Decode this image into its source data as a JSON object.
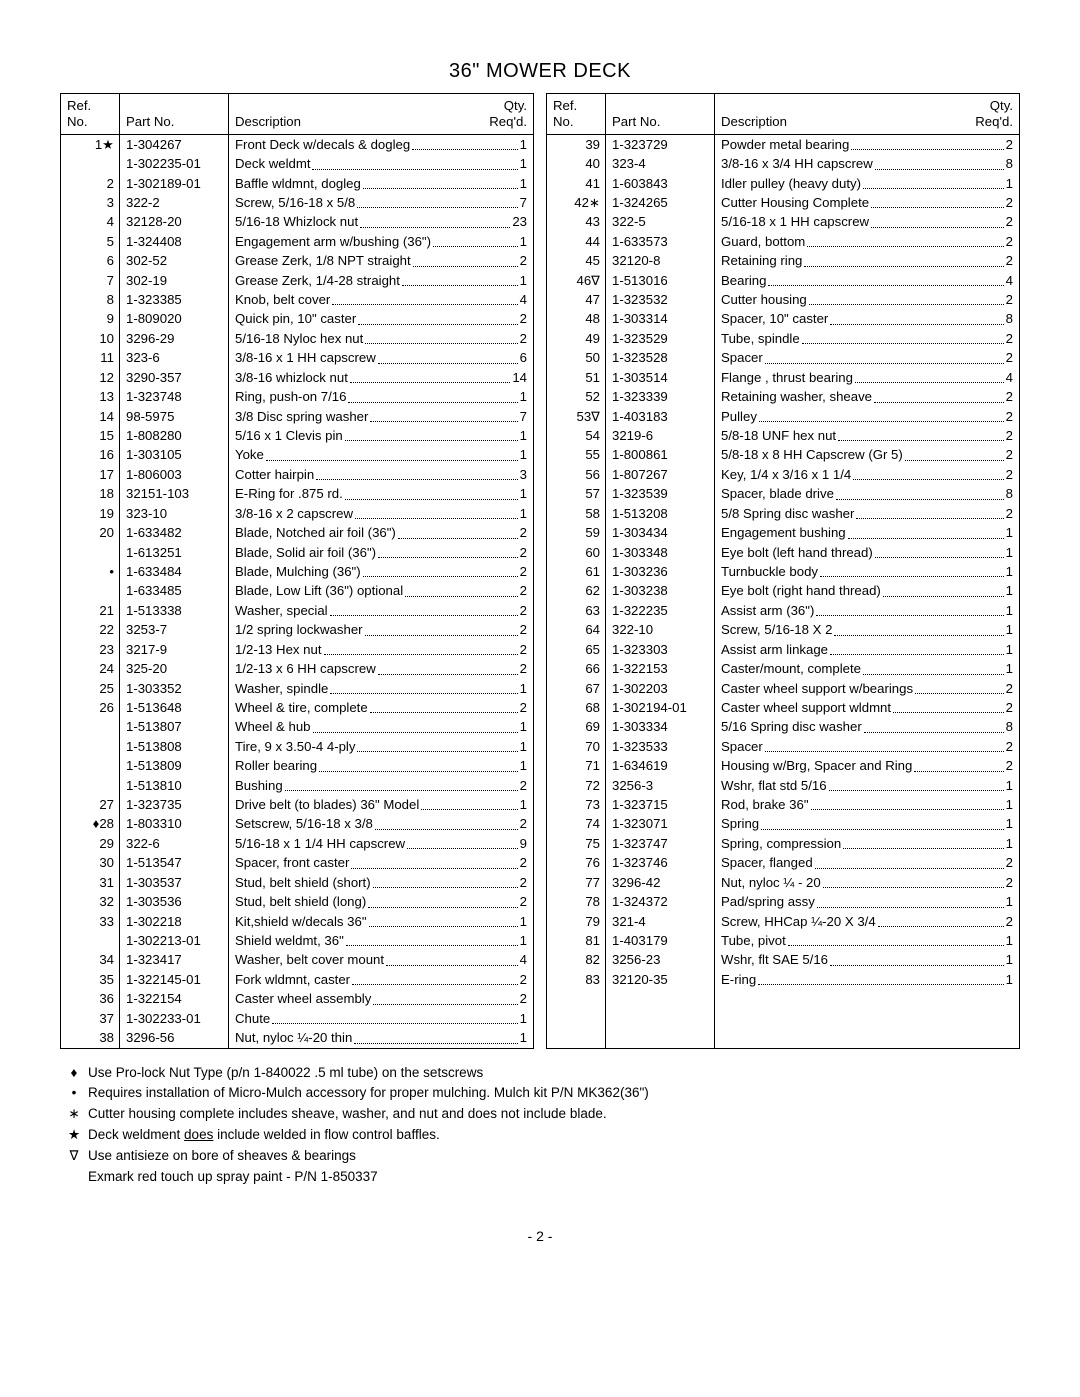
{
  "title": "36\" MOWER DECK",
  "headers": {
    "ref1": "Ref.",
    "ref2": "No.",
    "part": "Part No.",
    "desc": "Description",
    "qty1": "Qty.",
    "qty2": "Req'd."
  },
  "left": [
    {
      "ref": "1★",
      "part": "1-304267",
      "desc": "Front Deck w/decals & dogleg",
      "qty": "1"
    },
    {
      "ref": "",
      "part": "1-302235-01",
      "desc": "Deck weldmt",
      "qty": "1"
    },
    {
      "ref": "2",
      "part": "1-302189-01",
      "desc": "Baffle wldmnt, dogleg",
      "qty": "1"
    },
    {
      "ref": "3",
      "part": "322-2",
      "desc": "Screw, 5/16-18 x 5/8",
      "qty": "7"
    },
    {
      "ref": "4",
      "part": "32128-20",
      "desc": "5/16-18 Whizlock nut",
      "qty": "23"
    },
    {
      "ref": "5",
      "part": "1-324408",
      "desc": "Engagement arm w/bushing (36\")",
      "qty": "1"
    },
    {
      "ref": "6",
      "part": "302-52",
      "desc": "Grease Zerk, 1/8 NPT straight",
      "qty": "2"
    },
    {
      "ref": "7",
      "part": "302-19",
      "desc": "Grease Zerk, 1/4-28 straight",
      "qty": "1"
    },
    {
      "ref": "8",
      "part": "1-323385",
      "desc": "Knob, belt cover",
      "qty": "4"
    },
    {
      "ref": "9",
      "part": "1-809020",
      "desc": "Quick pin, 10\" caster",
      "qty": "2"
    },
    {
      "ref": "10",
      "part": "3296-29",
      "desc": "5/16-18 Nyloc hex nut",
      "qty": "2"
    },
    {
      "ref": "11",
      "part": "323-6",
      "desc": "3/8-16 x 1 HH capscrew",
      "qty": "6"
    },
    {
      "ref": "12",
      "part": "3290-357",
      "desc": "3/8-16 whizlock nut",
      "qty": "14"
    },
    {
      "ref": "13",
      "part": "1-323748",
      "desc": "Ring, push-on 7/16",
      "qty": "1"
    },
    {
      "ref": "14",
      "part": "98-5975",
      "desc": "3/8 Disc spring washer",
      "qty": "7"
    },
    {
      "ref": "15",
      "part": "1-808280",
      "desc": "5/16 x 1 Clevis pin",
      "qty": "1"
    },
    {
      "ref": "16",
      "part": "1-303105",
      "desc": "Yoke",
      "qty": "1"
    },
    {
      "ref": "17",
      "part": "1-806003",
      "desc": "Cotter hairpin",
      "qty": "3"
    },
    {
      "ref": "18",
      "part": "32151-103",
      "desc": "E-Ring for .875 rd.",
      "qty": "1"
    },
    {
      "ref": "19",
      "part": "323-10",
      "desc": "3/8-16 x 2 capscrew",
      "qty": "1"
    },
    {
      "ref": "20",
      "part": "1-633482",
      "desc": "Blade, Notched air foil (36\")",
      "qty": "2"
    },
    {
      "ref": "",
      "part": "1-613251",
      "desc": "Blade, Solid air foil (36\")",
      "qty": "2"
    },
    {
      "ref": "•",
      "part": "1-633484",
      "desc": "Blade, Mulching (36\")",
      "qty": "2"
    },
    {
      "ref": "",
      "part": "1-633485",
      "desc": "Blade, Low Lift (36\") optional",
      "qty": "2"
    },
    {
      "ref": "21",
      "part": "1-513338",
      "desc": "Washer, special",
      "qty": "2"
    },
    {
      "ref": "22",
      "part": "3253-7",
      "desc": "1/2 spring lockwasher",
      "qty": "2"
    },
    {
      "ref": "23",
      "part": "3217-9",
      "desc": "1/2-13 Hex nut",
      "qty": "2"
    },
    {
      "ref": "24",
      "part": "325-20",
      "desc": "1/2-13 x 6 HH capscrew",
      "qty": "2"
    },
    {
      "ref": "25",
      "part": "1-303352",
      "desc": "Washer, spindle",
      "qty": "1"
    },
    {
      "ref": "26",
      "part": "1-513648",
      "desc": "Wheel & tire, complete",
      "qty": "2"
    },
    {
      "ref": "",
      "part": "1-513807",
      "desc": "Wheel & hub",
      "qty": "1"
    },
    {
      "ref": "",
      "part": "1-513808",
      "desc": "Tire, 9 x 3.50-4 4-ply",
      "qty": "1"
    },
    {
      "ref": "",
      "part": "1-513809",
      "desc": "Roller bearing",
      "qty": "1"
    },
    {
      "ref": "",
      "part": "1-513810",
      "desc": "Bushing",
      "qty": "2"
    },
    {
      "ref": "27",
      "part": "1-323735",
      "desc": "Drive belt (to blades) 36\" Model",
      "qty": "1"
    },
    {
      "ref": "♦28",
      "part": "1-803310",
      "desc": "Setscrew, 5/16-18 x 3/8",
      "qty": "2"
    },
    {
      "ref": "29",
      "part": "322-6",
      "desc": "5/16-18 x 1 1/4 HH capscrew",
      "qty": "9"
    },
    {
      "ref": "30",
      "part": "1-513547",
      "desc": "Spacer, front caster",
      "qty": "2"
    },
    {
      "ref": "31",
      "part": "1-303537",
      "desc": "Stud, belt shield (short)",
      "qty": "2"
    },
    {
      "ref": "32",
      "part": "1-303536",
      "desc": "Stud, belt shield (long)",
      "qty": "2"
    },
    {
      "ref": "33",
      "part": "1-302218",
      "desc": "Kit,shield w/decals 36\"",
      "qty": "1"
    },
    {
      "ref": "",
      "part": "1-302213-01",
      "desc": "Shield weldmt, 36\"",
      "qty": "1"
    },
    {
      "ref": "34",
      "part": "1-323417",
      "desc": "Washer, belt cover mount",
      "qty": "4"
    },
    {
      "ref": "35",
      "part": "1-322145-01",
      "desc": "Fork wldmnt, caster",
      "qty": "2"
    },
    {
      "ref": "36",
      "part": "1-322154",
      "desc": "Caster wheel assembly",
      "qty": "2"
    },
    {
      "ref": "37",
      "part": "1-302233-01",
      "desc": "Chute",
      "qty": "1"
    },
    {
      "ref": "38",
      "part": "3296-56",
      "desc": "Nut, nyloc ¼-20 thin",
      "qty": "1"
    }
  ],
  "right": [
    {
      "ref": "39",
      "part": "1-323729",
      "desc": "Powder metal bearing",
      "qty": "2"
    },
    {
      "ref": "40",
      "part": "323-4",
      "desc": "3/8-16 x 3/4 HH capscrew",
      "qty": "8"
    },
    {
      "ref": "41",
      "part": "1-603843",
      "desc": "Idler pulley (heavy duty)",
      "qty": "1"
    },
    {
      "ref": "42∗",
      "part": "1-324265",
      "desc": "Cutter Housing Complete",
      "qty": "2"
    },
    {
      "ref": "43",
      "part": "322-5",
      "desc": "5/16-18 x 1 HH capscrew",
      "qty": "2"
    },
    {
      "ref": "44",
      "part": "1-633573",
      "desc": "Guard, bottom",
      "qty": "2"
    },
    {
      "ref": "45",
      "part": "32120-8",
      "desc": "Retaining ring",
      "qty": "2"
    },
    {
      "ref": "46∇",
      "part": "1-513016",
      "desc": "Bearing",
      "qty": "4"
    },
    {
      "ref": "47",
      "part": "1-323532",
      "desc": "Cutter housing",
      "qty": "2"
    },
    {
      "ref": "48",
      "part": "1-303314",
      "desc": "Spacer, 10\" caster",
      "qty": "8"
    },
    {
      "ref": "49",
      "part": "1-323529",
      "desc": "Tube, spindle",
      "qty": "2"
    },
    {
      "ref": "50",
      "part": "1-323528",
      "desc": "Spacer",
      "qty": "2"
    },
    {
      "ref": "51",
      "part": "1-303514",
      "desc": "Flange , thrust bearing",
      "qty": "4"
    },
    {
      "ref": "52",
      "part": "1-323339",
      "desc": "Retaining washer, sheave",
      "qty": "2"
    },
    {
      "ref": "53∇",
      "part": "1-403183",
      "desc": "Pulley",
      "qty": "2"
    },
    {
      "ref": "54",
      "part": "3219-6",
      "desc": "5/8-18 UNF hex nut",
      "qty": "2"
    },
    {
      "ref": "55",
      "part": "1-800861",
      "desc": "5/8-18 x 8 HH Capscrew (Gr 5)",
      "qty": "2"
    },
    {
      "ref": "56",
      "part": "1-807267",
      "desc": "Key, 1/4 x 3/16 x 1 1/4",
      "qty": "2"
    },
    {
      "ref": "57",
      "part": "1-323539",
      "desc": "Spacer, blade drive",
      "qty": "8"
    },
    {
      "ref": "58",
      "part": "1-513208",
      "desc": "5/8 Spring disc washer",
      "qty": "2"
    },
    {
      "ref": "59",
      "part": "1-303434",
      "desc": "Engagement bushing",
      "qty": "1"
    },
    {
      "ref": "60",
      "part": "1-303348",
      "desc": "Eye bolt (left hand thread)",
      "qty": "1"
    },
    {
      "ref": "61",
      "part": "1-303236",
      "desc": "Turnbuckle body",
      "qty": "1"
    },
    {
      "ref": "62",
      "part": "1-303238",
      "desc": "Eye bolt (right hand thread)",
      "qty": "1"
    },
    {
      "ref": "63",
      "part": "1-322235",
      "desc": "Assist arm (36\")",
      "qty": "1"
    },
    {
      "ref": "64",
      "part": "322-10",
      "desc": "Screw, 5/16-18 X 2",
      "qty": "1"
    },
    {
      "ref": "65",
      "part": "1-323303",
      "desc": "Assist arm linkage",
      "qty": "1"
    },
    {
      "ref": "66",
      "part": "1-322153",
      "desc": "Caster/mount, complete",
      "qty": "1"
    },
    {
      "ref": "67",
      "part": "1-302203",
      "desc": "Caster wheel support w/bearings",
      "qty": "2"
    },
    {
      "ref": "68",
      "part": "1-302194-01",
      "desc": "Caster wheel support wldmnt",
      "qty": "2"
    },
    {
      "ref": "69",
      "part": "1-303334",
      "desc": "5/16 Spring disc washer",
      "qty": "8"
    },
    {
      "ref": "70",
      "part": "1-323533",
      "desc": "Spacer",
      "qty": "2"
    },
    {
      "ref": "71",
      "part": "1-634619",
      "desc": "Housing w/Brg, Spacer and Ring",
      "qty": "2"
    },
    {
      "ref": "72",
      "part": "3256-3",
      "desc": "Wshr, flat std 5/16",
      "qty": "1"
    },
    {
      "ref": "73",
      "part": "1-323715",
      "desc": "Rod, brake 36\"",
      "qty": "1"
    },
    {
      "ref": "74",
      "part": "1-323071",
      "desc": "Spring",
      "qty": "1"
    },
    {
      "ref": "75",
      "part": "1-323747",
      "desc": "Spring, compression",
      "qty": "1"
    },
    {
      "ref": "76",
      "part": "1-323746",
      "desc": "Spacer, flanged",
      "qty": "2"
    },
    {
      "ref": "77",
      "part": "3296-42",
      "desc": "Nut, nyloc ¼ - 20",
      "qty": "2"
    },
    {
      "ref": "78",
      "part": "1-324372",
      "desc": "Pad/spring assy",
      "qty": "1"
    },
    {
      "ref": "79",
      "part": "321-4",
      "desc": "Screw, HHCap ¼-20 X 3/4",
      "qty": "2"
    },
    {
      "ref": "81",
      "part": "1-403179",
      "desc": "Tube, pivot",
      "qty": "1"
    },
    {
      "ref": "82",
      "part": "3256-23",
      "desc": "Wshr, flt SAE 5/16",
      "qty": "1"
    },
    {
      "ref": "83",
      "part": "32120-35",
      "desc": "E-ring",
      "qty": "1"
    }
  ],
  "notes": [
    {
      "sym": "♦",
      "text": "Use Pro-lock Nut Type (p/n 1-840022 .5 ml tube) on the setscrews"
    },
    {
      "sym": "•",
      "text": "Requires installation of Micro-Mulch accessory for proper mulching.  Mulch kit P/N MK362(36\")"
    },
    {
      "sym": "∗",
      "text": "Cutter housing complete includes sheave, washer, and nut and does not include blade."
    },
    {
      "sym": "★",
      "text": "Deck weldment <u>does</u> include welded in flow control baffles."
    },
    {
      "sym": "∇",
      "text": "Use antisieze on bore of sheaves & bearings"
    },
    {
      "sym": "",
      "text": "Exmark red touch up spray paint - P/N 1-850337"
    }
  ],
  "page": "- 2 -"
}
